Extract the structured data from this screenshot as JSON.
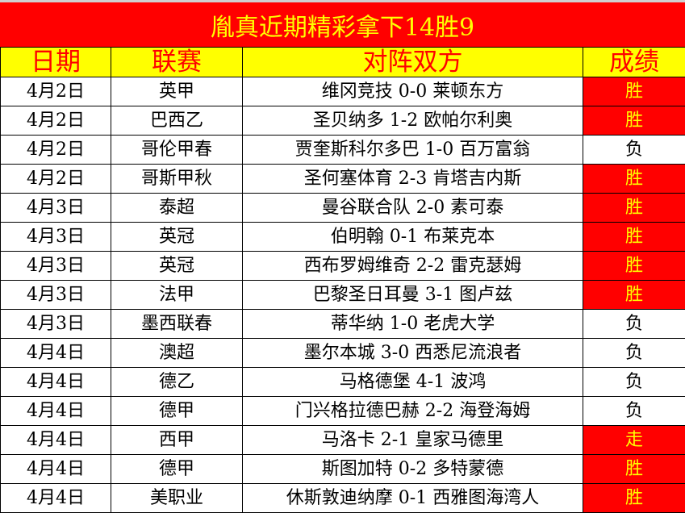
{
  "title": "胤真近期精彩拿下14胜9",
  "headers": [
    "日期",
    "联赛",
    "对阵双方",
    "成绩"
  ],
  "colors": {
    "title_bg": "#ff0000",
    "title_text": "#ffff00",
    "header_bg": "#ffff00",
    "header_text": "#ff0000",
    "highlight_bg": "#ff0000",
    "highlight_text": "#ffff00"
  },
  "rows": [
    {
      "date": "4月2日",
      "league": "英甲",
      "match": "维冈竞技 0-0 莱顿东方",
      "result": "胜",
      "highlight": true
    },
    {
      "date": "4月2日",
      "league": "巴西乙",
      "match": "圣贝纳多 1-2 欧帕尔利奥",
      "result": "胜",
      "highlight": true
    },
    {
      "date": "4月2日",
      "league": "哥伦甲春",
      "match": "贾奎斯科尔多巴 1-0 百万富翁",
      "result": "负",
      "highlight": false
    },
    {
      "date": "4月2日",
      "league": "哥斯甲秋",
      "match": "圣何塞体育 2-3 肯塔吉内斯",
      "result": "胜",
      "highlight": true
    },
    {
      "date": "4月3日",
      "league": "泰超",
      "match": "曼谷联合队 2-0 素可泰",
      "result": "胜",
      "highlight": true
    },
    {
      "date": "4月3日",
      "league": "英冠",
      "match": "伯明翰 0-1 布莱克本",
      "result": "胜",
      "highlight": true
    },
    {
      "date": "4月3日",
      "league": "英冠",
      "match": "西布罗姆维奇 2-2 雷克瑟姆",
      "result": "胜",
      "highlight": true
    },
    {
      "date": "4月3日",
      "league": "法甲",
      "match": "巴黎圣日耳曼 3-1 图卢兹",
      "result": "胜",
      "highlight": true
    },
    {
      "date": "4月3日",
      "league": "墨西联春",
      "match": "蒂华纳 1-0 老虎大学",
      "result": "负",
      "highlight": false
    },
    {
      "date": "4月4日",
      "league": "澳超",
      "match": "墨尔本城 3-0 西悉尼流浪者",
      "result": "负",
      "highlight": false
    },
    {
      "date": "4月4日",
      "league": "德乙",
      "match": "马格德堡 4-1 波鸿",
      "result": "负",
      "highlight": false
    },
    {
      "date": "4月4日",
      "league": "德甲",
      "match": "门兴格拉德巴赫 2-2 海登海姆",
      "result": "负",
      "highlight": false
    },
    {
      "date": "4月4日",
      "league": "西甲",
      "match": "马洛卡 2-1 皇家马德里",
      "result": "走",
      "highlight": true
    },
    {
      "date": "4月4日",
      "league": "德甲",
      "match": "斯图加特 0-2 多特蒙德",
      "result": "胜",
      "highlight": true
    },
    {
      "date": "4月4日",
      "league": "美职业",
      "match": "休斯敦迪纳摩 0-1 西雅图海湾人",
      "result": "胜",
      "highlight": true
    }
  ]
}
